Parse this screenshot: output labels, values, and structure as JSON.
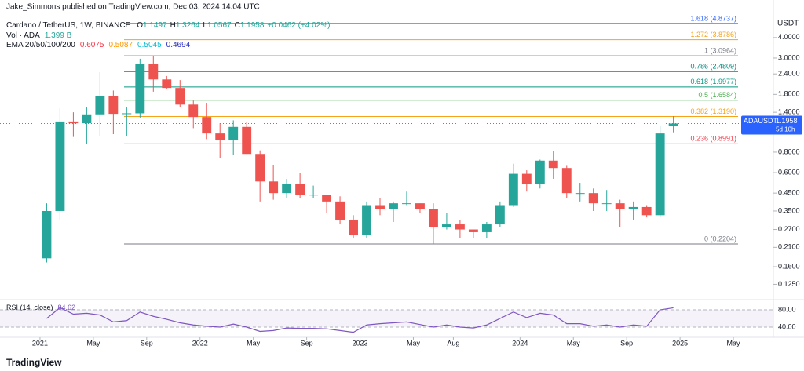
{
  "header": {
    "publisher": "Jake_Simmons published on TradingView.com, Dec 03, 2024 14:04 UTC",
    "symbol": "Cardano / TetherUS, 1W, BINANCE",
    "ohlc_labels": [
      "O",
      "H",
      "L",
      "C"
    ],
    "ohlc_values": [
      1.1497,
      1.3264,
      1.0567,
      1.1958
    ],
    "change": "+0.0462 (+4.02%)",
    "volume_label": "Vol · ADA",
    "volume_value": "1.399 B",
    "ema_label": "EMA 20/50/100/200",
    "ema_values": [
      0.6075,
      0.5087,
      0.5045,
      0.4694
    ],
    "ema_colors": [
      "#f23645",
      "#ff9800",
      "#00bcd4",
      "#2a2ec1"
    ],
    "axis_unit": "USDT",
    "price_tag": {
      "symbol": "ADAUSDT",
      "value": 1.1958,
      "countdown": "5d 10h"
    },
    "footer": "TradingView"
  },
  "chart_data": {
    "type": "candlestick",
    "log_scale": true,
    "up_color": "#26a69a",
    "down_color": "#ef5350",
    "x": [
      "2021-01",
      "2021-02",
      "2021-03",
      "2021-04",
      "2021-05",
      "2021-06",
      "2021-07",
      "2021-08",
      "2021-09",
      "2021-10",
      "2021-11",
      "2021-12",
      "2022-01",
      "2022-02",
      "2022-03",
      "2022-04",
      "2022-05",
      "2022-06",
      "2022-07",
      "2022-08",
      "2022-09",
      "2022-10",
      "2022-11",
      "2022-12",
      "2023-01",
      "2023-02",
      "2023-03",
      "2023-04",
      "2023-05",
      "2023-06",
      "2023-07",
      "2023-08",
      "2023-09",
      "2023-10",
      "2023-11",
      "2023-12",
      "2024-01",
      "2024-02",
      "2024-03",
      "2024-04",
      "2024-05",
      "2024-06",
      "2024-07",
      "2024-08",
      "2024-09",
      "2024-10",
      "2024-11",
      "2024-12"
    ],
    "open": [
      0.18,
      0.35,
      1.23,
      1.2,
      1.36,
      1.76,
      1.37,
      1.38,
      2.76,
      2.22,
      1.97,
      1.56,
      1.31,
      1.04,
      0.95,
      1.14,
      0.78,
      0.53,
      0.45,
      0.51,
      0.44,
      0.44,
      0.4,
      0.31,
      0.25,
      0.38,
      0.36,
      0.39,
      0.39,
      0.36,
      0.28,
      0.29,
      0.27,
      0.26,
      0.29,
      0.38,
      0.59,
      0.51,
      0.71,
      0.64,
      0.45,
      0.45,
      0.39,
      0.39,
      0.36,
      0.37,
      0.33,
      1.1497
    ],
    "high": [
      0.39,
      1.48,
      1.4,
      1.5,
      2.46,
      1.9,
      1.5,
      2.97,
      3.1,
      2.33,
      2.2,
      1.65,
      1.6,
      1.2,
      1.25,
      1.22,
      0.82,
      0.67,
      0.55,
      0.6,
      0.5,
      0.44,
      0.43,
      0.33,
      0.4,
      0.42,
      0.4,
      0.46,
      0.39,
      0.39,
      0.34,
      0.31,
      0.27,
      0.3,
      0.4,
      0.68,
      0.62,
      0.72,
      0.81,
      0.66,
      0.52,
      0.48,
      0.47,
      0.41,
      0.4,
      0.38,
      1.15,
      1.3264
    ],
    "low": [
      0.17,
      0.31,
      0.99,
      0.9,
      1.0,
      1.03,
      1.0,
      1.3,
      1.87,
      1.94,
      1.5,
      1.12,
      0.96,
      0.74,
      0.77,
      0.78,
      0.4,
      0.41,
      0.42,
      0.42,
      0.42,
      0.34,
      0.29,
      0.24,
      0.24,
      0.33,
      0.3,
      0.38,
      0.34,
      0.22,
      0.27,
      0.24,
      0.24,
      0.24,
      0.28,
      0.37,
      0.46,
      0.48,
      0.55,
      0.42,
      0.4,
      0.35,
      0.35,
      0.28,
      0.31,
      0.32,
      0.32,
      1.0567
    ],
    "close": [
      0.35,
      1.23,
      1.2,
      1.36,
      1.76,
      1.37,
      1.38,
      2.76,
      2.22,
      1.97,
      1.56,
      1.31,
      1.04,
      0.95,
      1.14,
      0.78,
      0.53,
      0.45,
      0.51,
      0.44,
      0.44,
      0.4,
      0.31,
      0.25,
      0.38,
      0.36,
      0.39,
      0.39,
      0.36,
      0.28,
      0.29,
      0.27,
      0.26,
      0.29,
      0.38,
      0.59,
      0.51,
      0.71,
      0.64,
      0.45,
      0.45,
      0.39,
      0.39,
      0.36,
      0.37,
      0.33,
      1.04,
      1.1958
    ],
    "xlim": [
      "2020-10",
      "2025-08"
    ],
    "xticks": [
      {
        "value": "2021-01",
        "label": "2021"
      },
      {
        "value": "2021-05",
        "label": "May"
      },
      {
        "value": "2021-09",
        "label": "Sep"
      },
      {
        "value": "2022-01",
        "label": "2022"
      },
      {
        "value": "2022-05",
        "label": "May"
      },
      {
        "value": "2022-09",
        "label": "Sep"
      },
      {
        "value": "2023-01",
        "label": "2023"
      },
      {
        "value": "2023-05",
        "label": "May"
      },
      {
        "value": "2023-08",
        "label": "Aug"
      },
      {
        "value": "2024-01",
        "label": "2024"
      },
      {
        "value": "2024-05",
        "label": "May"
      },
      {
        "value": "2024-09",
        "label": "Sep"
      },
      {
        "value": "2025-01",
        "label": "2025"
      },
      {
        "value": "2025-05",
        "label": "May"
      }
    ],
    "ylim": [
      0.103,
      6.07
    ],
    "yticks": [
      {
        "value": 4,
        "label": "4.0000"
      },
      {
        "value": 3,
        "label": "3.0000"
      },
      {
        "value": 2.4,
        "label": "2.4000"
      },
      {
        "value": 1.8,
        "label": "1.8000"
      },
      {
        "value": 1.4,
        "label": "1.4000"
      },
      {
        "value": 0.8,
        "label": "0.8000"
      },
      {
        "value": 0.6,
        "label": "0.6000"
      },
      {
        "value": 0.45,
        "label": "0.4500"
      },
      {
        "value": 0.35,
        "label": "0.3500"
      },
      {
        "value": 0.27,
        "label": "0.2700"
      },
      {
        "value": 0.21,
        "label": "0.2100"
      },
      {
        "value": 0.16,
        "label": "0.1600"
      },
      {
        "value": 0.125,
        "label": "0.1250"
      }
    ],
    "fib_levels": [
      {
        "label": "1.618 (4.8737)",
        "value": 4.8737,
        "color": "#2962ff"
      },
      {
        "label": "1.272 (3.8786)",
        "value": 3.8786,
        "color": "#f7a21b"
      },
      {
        "label": "1 (3.0964)",
        "value": 3.0964,
        "color": "#787b86"
      },
      {
        "label": "0.786 (2.4809)",
        "value": 2.4809,
        "color": "#00897b"
      },
      {
        "label": "0.618 (1.9977)",
        "value": 1.9977,
        "color": "#089981"
      },
      {
        "label": "0.5 (1.6584)",
        "value": 1.6584,
        "color": "#4caf50"
      },
      {
        "label": "0.382 (1.3190)",
        "value": 1.319,
        "color": "#f7a21b"
      },
      {
        "label": "0.236 (0.8991)",
        "value": 0.8991,
        "color": "#f23645"
      },
      {
        "label": "0 (0.2204)",
        "value": 0.2204,
        "color": "#787b86"
      }
    ],
    "rsi": {
      "label": "RSI (14, close)",
      "current": 84.62,
      "color": "#7e57c2",
      "values": [
        60,
        85,
        70,
        72,
        68,
        52,
        55,
        75,
        65,
        58,
        50,
        45,
        42,
        40,
        47,
        40,
        30,
        32,
        38,
        37,
        37,
        36,
        32,
        28,
        45,
        48,
        50,
        52,
        46,
        40,
        45,
        40,
        38,
        45,
        60,
        75,
        62,
        72,
        68,
        48,
        48,
        42,
        45,
        40,
        45,
        42,
        80,
        84.62
      ],
      "ylim": [
        20,
        100
      ],
      "yticks": [
        {
          "value": 80,
          "label": "80.00"
        },
        {
          "value": 40,
          "label": "40.00"
        }
      ]
    }
  }
}
